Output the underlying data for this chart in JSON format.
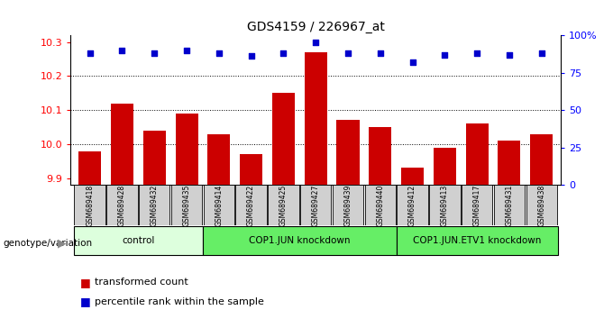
{
  "title": "GDS4159 / 226967_at",
  "samples": [
    "GSM689418",
    "GSM689428",
    "GSM689432",
    "GSM689435",
    "GSM689414",
    "GSM689422",
    "GSM689425",
    "GSM689427",
    "GSM689439",
    "GSM689440",
    "GSM689412",
    "GSM689413",
    "GSM689417",
    "GSM689431",
    "GSM689438"
  ],
  "bar_values": [
    9.98,
    10.12,
    10.04,
    10.09,
    10.03,
    9.97,
    10.15,
    10.27,
    10.07,
    10.05,
    9.93,
    9.99,
    10.06,
    10.01,
    10.03
  ],
  "dot_values": [
    88,
    90,
    88,
    90,
    88,
    86,
    88,
    95,
    88,
    88,
    82,
    87,
    88,
    87,
    88
  ],
  "bar_color": "#cc0000",
  "dot_color": "#0000cc",
  "groups": [
    {
      "label": "control",
      "start": 0,
      "end": 4,
      "color": "#ddffdd"
    },
    {
      "label": "COP1.JUN knockdown",
      "start": 4,
      "end": 10,
      "color": "#66ee66"
    },
    {
      "label": "COP1.JUN.ETV1 knockdown",
      "start": 10,
      "end": 15,
      "color": "#66ee66"
    }
  ],
  "ylim_left": [
    9.88,
    10.32
  ],
  "ylim_right": [
    0,
    100
  ],
  "yticks_left": [
    9.9,
    10.0,
    10.1,
    10.2,
    10.3
  ],
  "yticks_right": [
    0,
    25,
    50,
    75,
    100
  ],
  "grid_values": [
    10.0,
    10.1,
    10.2
  ],
  "bar_width": 0.7,
  "plot_bg_color": "#ffffff",
  "legend_items": [
    {
      "label": "transformed count",
      "color": "#cc0000"
    },
    {
      "label": "percentile rank within the sample",
      "color": "#0000cc"
    }
  ]
}
